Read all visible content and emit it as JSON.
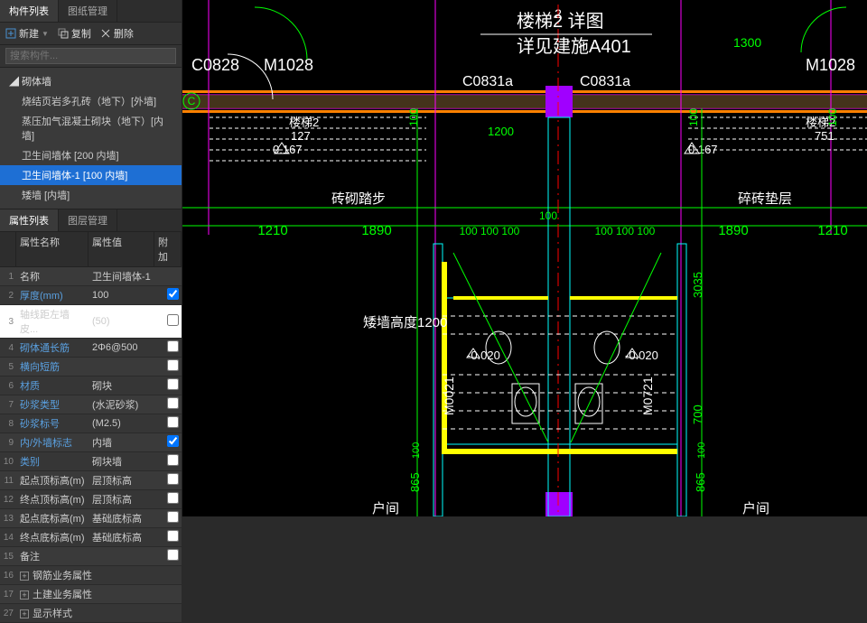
{
  "tabs_top": {
    "components": "构件列表",
    "drawing": "图纸管理"
  },
  "toolbar": {
    "new": "新建",
    "copy": "复制",
    "delete": "删除"
  },
  "search": {
    "placeholder": "搜索构件..."
  },
  "tree": {
    "group": "砌体墙",
    "items": [
      "烧结页岩多孔砖（地下）[外墙]",
      "蒸压加气混凝土砌块（地下）[内墙]",
      "卫生间墙体 [200 内墙]",
      "卫生间墙体-1 [100 内墙]",
      "矮墙 [内墙]"
    ],
    "selected_index": 3
  },
  "tabs_bottom": {
    "props": "属性列表",
    "layers": "图层管理"
  },
  "prop_header": {
    "name": "属性名称",
    "value": "属性值",
    "add": "附加"
  },
  "properties": [
    {
      "n": 1,
      "name": "名称",
      "value": "卫生间墙体-1",
      "link": false
    },
    {
      "n": 2,
      "name": "厚度(mm)",
      "value": "100",
      "checked": true,
      "link": true
    },
    {
      "n": 3,
      "name": "轴线距左墙皮...",
      "value": "(50)",
      "editing": true
    },
    {
      "n": 4,
      "name": "砌体通长筋",
      "value": "2Φ6@500",
      "link": true
    },
    {
      "n": 5,
      "name": "横向短筋",
      "value": "",
      "link": true
    },
    {
      "n": 6,
      "name": "材质",
      "value": "砌块",
      "link": true
    },
    {
      "n": 7,
      "name": "砂浆类型",
      "value": "(水泥砂浆)",
      "link": true
    },
    {
      "n": 8,
      "name": "砂浆标号",
      "value": "(M2.5)",
      "link": true
    },
    {
      "n": 9,
      "name": "内/外墙标志",
      "value": "内墙",
      "checked": true,
      "link": true
    },
    {
      "n": 10,
      "name": "类别",
      "value": "砌块墙",
      "link": true
    },
    {
      "n": 11,
      "name": "起点顶标高(m)",
      "value": "层顶标高",
      "link": false
    },
    {
      "n": 12,
      "name": "终点顶标高(m)",
      "value": "层顶标高",
      "link": false
    },
    {
      "n": 13,
      "name": "起点底标高(m)",
      "value": "基础底标高",
      "link": false
    },
    {
      "n": 14,
      "name": "终点底标高(m)",
      "value": "基础底标高",
      "link": false
    },
    {
      "n": 15,
      "name": "备注",
      "value": "",
      "link": false
    }
  ],
  "expand_rows": [
    {
      "n": 16,
      "label": "钢筋业务属性"
    },
    {
      "n": 17,
      "label": "土建业务属性"
    },
    {
      "n": 27,
      "label": "显示样式"
    }
  ],
  "cad": {
    "colors": {
      "bg": "#000000",
      "magenta": "#ff00ff",
      "yellow": "#ffff00",
      "cyan": "#00ffff",
      "green": "#00ff00",
      "white": "#ffffff",
      "orange": "#ff8000",
      "purple": "#a000ff",
      "brown": "#806040"
    },
    "title": "楼梯2 详图",
    "subtitle": "详见建施A401",
    "dims_top": [
      "1210",
      "1890",
      "100 100 100",
      "100 100 100",
      "1890",
      "1210"
    ],
    "labels": {
      "c0828": "C0828",
      "m1028": "M1028",
      "c0831a_l": "C0831a",
      "c0831a_r": "C0831a",
      "m1028_r": "M1028",
      "stair_l": "楼梯2",
      "stair_r": "楼梯2",
      "brick_step": "砖砌踏步",
      "cn_label_r": "碎砖垫层",
      "low_wall": "矮墙高度1200",
      "m0021": "M0021",
      "m0721": "M0721",
      "room_l": "户间",
      "room_r": "户间",
      "n127": "127",
      "n0167_l": "0.167",
      "n0167_r": "0.167",
      "n_020_l": "-0.020",
      "n_020_r": "-0.020",
      "n1300": "1300",
      "n1200": "1200",
      "n100_stairs": "100",
      "n751": "751"
    },
    "vdims": {
      "v100_tl": "100",
      "v100_tr": "100",
      "v100_tr2": "100",
      "v865_l": "865",
      "v865_r": "865",
      "v100_bl": "100",
      "v100_br": "100",
      "v3035": "3035",
      "v700": "700"
    },
    "grid_c": "C",
    "grid_2": "2"
  }
}
